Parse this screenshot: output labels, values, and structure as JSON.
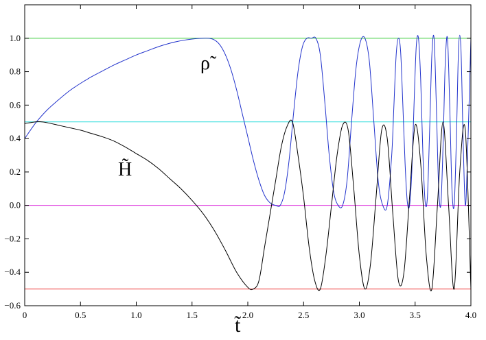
{
  "chart_data": {
    "type": "line",
    "title": "",
    "xlabel": "t̃",
    "ylabel": "",
    "xlim": [
      0,
      4.0
    ],
    "ylim": [
      -0.6,
      1.2
    ],
    "xticks": [
      "0",
      "0.5",
      "1.0",
      "1.5",
      "2.0",
      "2.5",
      "3.0",
      "3.5",
      "4.0"
    ],
    "yticks": [
      "−0.6",
      "−0.4",
      "−0.2",
      "0.0",
      "0.2",
      "0.4",
      "0.6",
      "0.8",
      "1.0"
    ],
    "reference_lines": [
      {
        "y": 1.0,
        "color": "#33cc33"
      },
      {
        "y": 0.5,
        "color": "#33dddd"
      },
      {
        "y": 0.0,
        "color": "#dd33dd"
      },
      {
        "y": -0.5,
        "color": "#ee3333"
      }
    ],
    "series": [
      {
        "name": "ρ̃",
        "color": "#2233cc",
        "x": [
          0,
          0.1,
          0.2,
          0.3,
          0.4,
          0.5,
          0.6,
          0.7,
          0.8,
          0.9,
          1.0,
          1.1,
          1.2,
          1.3,
          1.4,
          1.5,
          1.6,
          1.65,
          1.7,
          1.75,
          1.8,
          1.85,
          1.9,
          1.95,
          2.0,
          2.05,
          2.1,
          2.15,
          2.2,
          2.25,
          2.29,
          2.33,
          2.37,
          2.41,
          2.45,
          2.49,
          2.53,
          2.57,
          2.61,
          2.65,
          2.69,
          2.73,
          2.77,
          2.81,
          2.85,
          2.89,
          2.93,
          2.97,
          3.01,
          3.05,
          3.09,
          3.13,
          3.17,
          3.21,
          3.25,
          3.29,
          3.31,
          3.33,
          3.35,
          3.37,
          3.39,
          3.41,
          3.43,
          3.45,
          3.47,
          3.49,
          3.51,
          3.53,
          3.55,
          3.57,
          3.59,
          3.61,
          3.63,
          3.65,
          3.67,
          3.69,
          3.71,
          3.73,
          3.75,
          3.77,
          3.79,
          3.81,
          3.83,
          3.85,
          3.87,
          3.89,
          3.91,
          3.93,
          3.95,
          3.97,
          4.0
        ],
        "y": [
          0.4,
          0.495,
          0.57,
          0.63,
          0.685,
          0.73,
          0.77,
          0.805,
          0.84,
          0.87,
          0.9,
          0.925,
          0.95,
          0.97,
          0.985,
          0.995,
          1.0,
          1.0,
          0.99,
          0.96,
          0.9,
          0.81,
          0.69,
          0.55,
          0.41,
          0.27,
          0.15,
          0.06,
          0.015,
          0.0,
          0.0,
          0.08,
          0.27,
          0.55,
          0.8,
          0.95,
          1.0,
          1.0,
          1.0,
          0.9,
          0.62,
          0.3,
          0.08,
          0.0,
          0.0,
          0.15,
          0.5,
          0.82,
          0.98,
          1.0,
          0.86,
          0.5,
          0.14,
          0.0,
          0.0,
          0.3,
          0.6,
          0.9,
          1.0,
          0.92,
          0.6,
          0.25,
          0.02,
          0.0,
          0.2,
          0.6,
          0.95,
          1.0,
          0.75,
          0.3,
          0.02,
          0.05,
          0.45,
          0.9,
          1.0,
          0.6,
          0.12,
          0.0,
          0.35,
          0.85,
          1.0,
          0.6,
          0.1,
          0.0,
          0.4,
          0.95,
          0.95,
          0.4,
          0.0,
          0.3,
          1.0
        ]
      },
      {
        "name": "H̃",
        "color": "#000000",
        "x": [
          0,
          0.1,
          0.15,
          0.2,
          0.3,
          0.4,
          0.5,
          0.6,
          0.7,
          0.8,
          0.9,
          1.0,
          1.1,
          1.2,
          1.3,
          1.4,
          1.5,
          1.6,
          1.7,
          1.8,
          1.9,
          2.0,
          2.05,
          2.1,
          2.15,
          2.2,
          2.25,
          2.3,
          2.35,
          2.4,
          2.45,
          2.5,
          2.55,
          2.6,
          2.65,
          2.7,
          2.75,
          2.8,
          2.85,
          2.9,
          2.95,
          3.0,
          3.05,
          3.1,
          3.15,
          3.2,
          3.25,
          3.3,
          3.35,
          3.4,
          3.45,
          3.5,
          3.55,
          3.6,
          3.65,
          3.7,
          3.75,
          3.8,
          3.85,
          3.9,
          3.95,
          4.0
        ],
        "y": [
          0.49,
          0.5,
          0.5,
          0.495,
          0.48,
          0.465,
          0.45,
          0.43,
          0.41,
          0.385,
          0.35,
          0.31,
          0.27,
          0.22,
          0.16,
          0.1,
          0.03,
          -0.05,
          -0.15,
          -0.27,
          -0.4,
          -0.49,
          -0.5,
          -0.45,
          -0.25,
          -0.05,
          0.15,
          0.35,
          0.47,
          0.5,
          0.3,
          0.05,
          -0.25,
          -0.45,
          -0.5,
          -0.3,
          0.0,
          0.3,
          0.48,
          0.45,
          0.1,
          -0.3,
          -0.5,
          -0.35,
          0.05,
          0.45,
          0.4,
          -0.05,
          -0.45,
          -0.4,
          0.05,
          0.48,
          0.25,
          -0.3,
          -0.5,
          0.0,
          0.5,
          0.0,
          -0.5,
          0.2,
          0.45,
          -0.5
        ]
      }
    ]
  }
}
